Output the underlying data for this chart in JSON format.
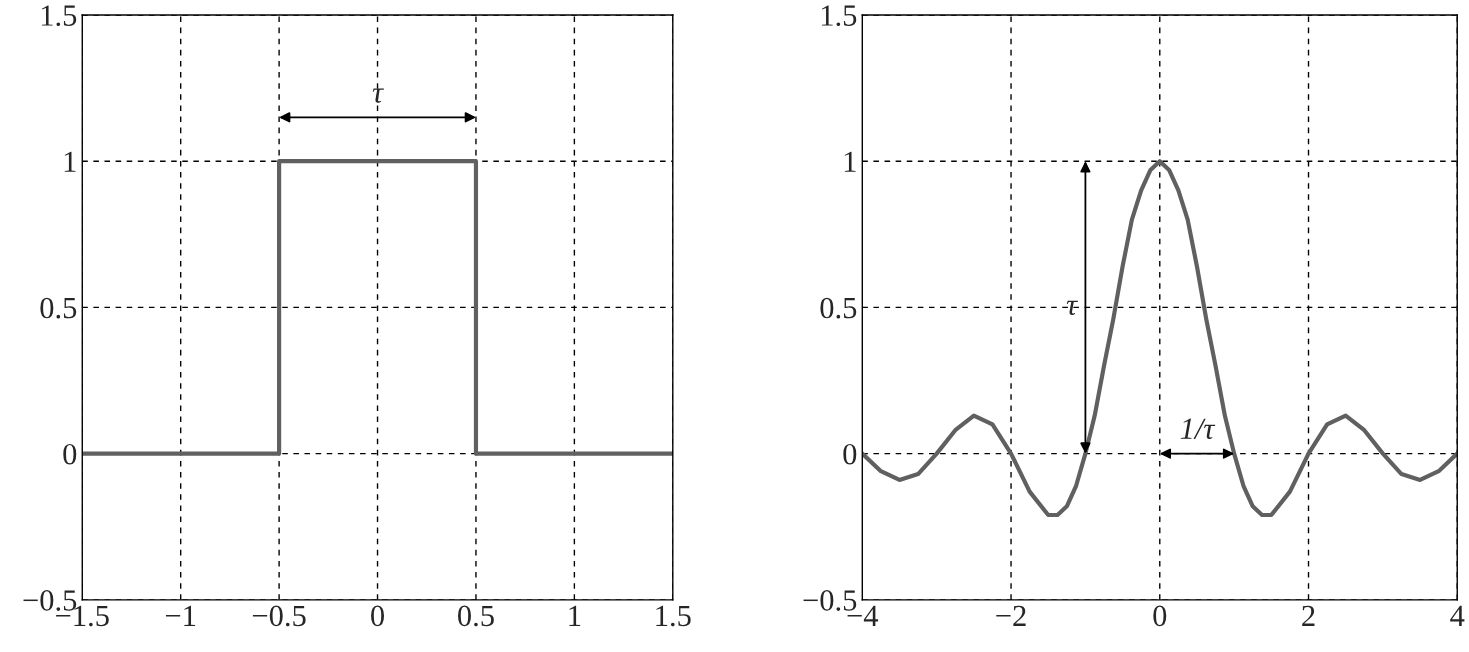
{
  "chart_data": [
    {
      "type": "line",
      "x": [
        -1.5,
        -0.5,
        -0.5,
        0.5,
        0.5,
        1.5
      ],
      "series": [
        {
          "color": "#606060",
          "values": [
            0,
            0,
            1,
            1,
            0,
            0
          ]
        }
      ],
      "xlim": [
        -1.5,
        1.5
      ],
      "ylim": [
        -0.5,
        1.5
      ],
      "xticks": [
        {
          "value": -1.5,
          "label": "−1.5"
        },
        {
          "value": -1,
          "label": "−1"
        },
        {
          "value": -0.5,
          "label": "−0.5"
        },
        0,
        0.5,
        1,
        1.5
      ],
      "yticks": [
        {
          "value": -0.5,
          "label": "−0.5"
        },
        0,
        0.5,
        1,
        1.5
      ],
      "grid": true,
      "line_style": "solid",
      "marker": "none",
      "annotations": [
        "τ"
      ]
    },
    {
      "type": "line",
      "x": [
        -4,
        -3.75,
        -3.5,
        -3.25,
        -3,
        -2.75,
        -2.5,
        -2.25,
        -2,
        -1.75,
        -1.5,
        -1.375,
        -1.25,
        -1.125,
        -1,
        -0.875,
        -0.75,
        -0.625,
        -0.5,
        -0.375,
        -0.25,
        -0.125,
        0,
        0.125,
        0.25,
        0.375,
        0.5,
        0.625,
        0.75,
        0.875,
        1,
        1.125,
        1.25,
        1.375,
        1.5,
        1.75,
        2,
        2.25,
        2.5,
        2.75,
        3,
        3.25,
        3.5,
        3.75,
        4
      ],
      "series": [
        {
          "color": "#606060",
          "values": [
            0,
            -0.06,
            -0.09,
            -0.07,
            0,
            0.08,
            0.13,
            0.1,
            0,
            -0.13,
            -0.21,
            -0.21,
            -0.18,
            -0.11,
            0,
            0.13,
            0.3,
            0.46,
            0.64,
            0.8,
            0.9,
            0.97,
            1,
            0.97,
            0.9,
            0.8,
            0.64,
            0.46,
            0.3,
            0.13,
            0,
            -0.11,
            -0.18,
            -0.21,
            -0.21,
            -0.13,
            0,
            0.1,
            0.13,
            0.08,
            0,
            -0.07,
            -0.09,
            -0.06,
            0
          ]
        }
      ],
      "xlim": [
        -4,
        4
      ],
      "ylim": [
        -0.5,
        1.5
      ],
      "xticks": [
        {
          "value": -4,
          "label": "−4"
        },
        {
          "value": -2,
          "label": "−2"
        },
        0,
        2,
        4
      ],
      "yticks": [
        {
          "value": -0.5,
          "label": "−0.5"
        },
        0,
        0.5,
        1,
        1.5
      ],
      "grid": true,
      "line_style": "solid",
      "marker": "none",
      "annotations": [
        "τ",
        "1/τ"
      ]
    }
  ]
}
